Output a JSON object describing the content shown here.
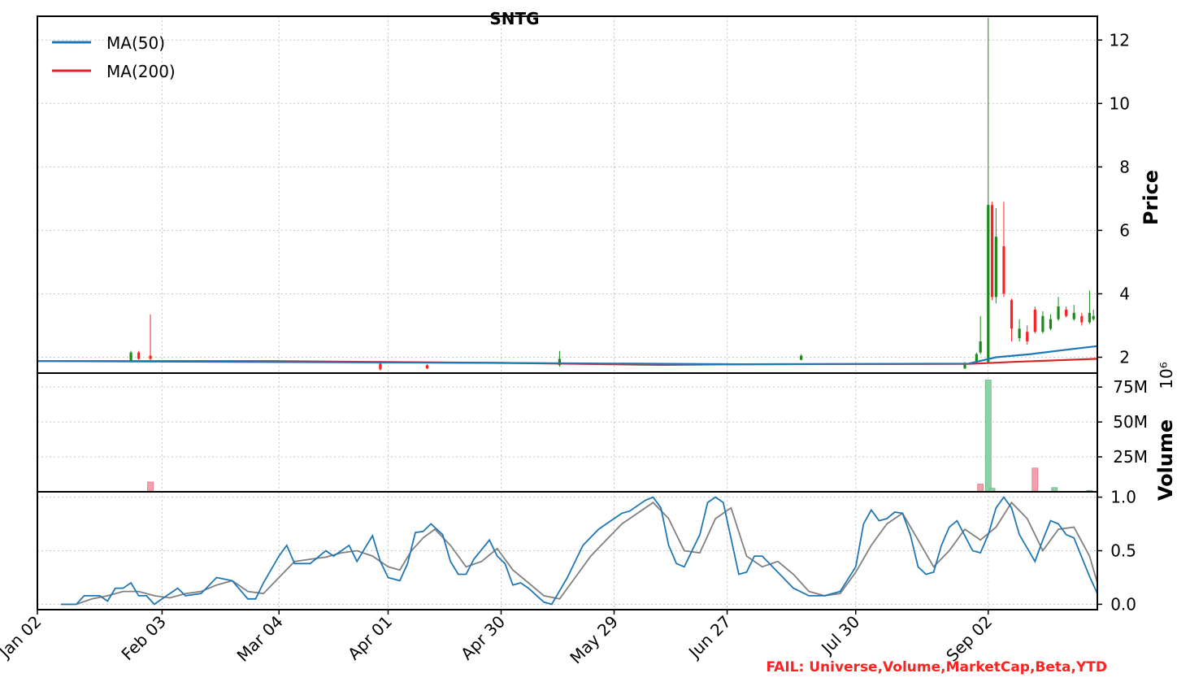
{
  "chart_data": {
    "type": "candlestick",
    "title": "SNTG",
    "status_text": "FAIL: Universe,Volume,MarketCap,Beta,YTD",
    "x_tick_labels": [
      "Jan 02",
      "Feb 03",
      "Mar 04",
      "Apr 01",
      "Apr 30",
      "May 29",
      "Jun 27",
      "Jul 30",
      "Sep 02"
    ],
    "x_tick_days": [
      0,
      32,
      62,
      90,
      119,
      148,
      177,
      210,
      244
    ],
    "x_range_days": [
      0,
      272
    ],
    "colors": {
      "up": "#1a8a1a",
      "down": "#ff2020",
      "ma50": "#1f77b4",
      "ma200": "#d62728",
      "vol_up": "#8fd0a8",
      "vol_down": "#f4a0ac",
      "osc_fast": "#1f77b4",
      "osc_slow": "#808080"
    },
    "price_panel": {
      "ylabel": "Price",
      "ylim": [
        1.5,
        12.75
      ],
      "yticks": [
        2,
        4,
        6,
        8,
        10,
        12
      ],
      "legend": [
        "MA(50)",
        "MA(200)"
      ],
      "legend_position": "top-left",
      "grid": true,
      "ma50": [
        [
          0,
          1.88
        ],
        [
          120,
          1.82
        ],
        [
          180,
          1.78
        ],
        [
          239,
          1.8
        ],
        [
          246,
          2.0
        ],
        [
          255,
          2.1
        ],
        [
          265,
          2.25
        ],
        [
          272,
          2.35
        ]
      ],
      "ma200": [
        [
          0,
          1.88
        ],
        [
          60,
          1.88
        ],
        [
          120,
          1.82
        ],
        [
          160,
          1.76
        ],
        [
          180,
          1.78
        ],
        [
          239,
          1.79
        ],
        [
          250,
          1.85
        ],
        [
          272,
          1.95
        ]
      ],
      "candles": [
        [
          24,
          1.9,
          2.15,
          1.88,
          2.2
        ],
        [
          26,
          2.15,
          1.95,
          1.92,
          2.2
        ],
        [
          29,
          2.05,
          1.95,
          1.85,
          3.35
        ],
        [
          88,
          1.8,
          1.62,
          1.58,
          1.82
        ],
        [
          100,
          1.75,
          1.65,
          1.62,
          1.78
        ],
        [
          134,
          1.75,
          1.95,
          1.7,
          2.2
        ],
        [
          196,
          1.92,
          2.05,
          1.9,
          2.1
        ],
        [
          238,
          1.65,
          1.8,
          1.62,
          1.85
        ],
        [
          241,
          1.85,
          2.1,
          1.8,
          2.15
        ],
        [
          242,
          2.15,
          2.5,
          2.1,
          3.3
        ],
        [
          244,
          1.85,
          6.8,
          1.8,
          12.7
        ],
        [
          245,
          6.8,
          3.9,
          3.8,
          6.9
        ],
        [
          246,
          3.9,
          5.8,
          3.7,
          6.7
        ],
        [
          248,
          5.5,
          4.0,
          3.9,
          6.9
        ],
        [
          250,
          3.8,
          2.9,
          2.5,
          3.85
        ],
        [
          252,
          2.6,
          2.9,
          2.5,
          3.2
        ],
        [
          254,
          2.8,
          2.5,
          2.4,
          3.0
        ],
        [
          256,
          3.5,
          2.8,
          2.75,
          3.6
        ],
        [
          258,
          2.8,
          3.3,
          2.75,
          3.45
        ],
        [
          260,
          2.9,
          3.2,
          2.85,
          3.35
        ],
        [
          262,
          3.2,
          3.6,
          3.15,
          3.9
        ],
        [
          264,
          3.5,
          3.3,
          3.25,
          3.6
        ],
        [
          266,
          3.2,
          3.4,
          3.15,
          3.65
        ],
        [
          268,
          3.3,
          3.1,
          3.0,
          3.4
        ],
        [
          270,
          3.1,
          3.4,
          3.05,
          4.1
        ],
        [
          271,
          3.2,
          3.3,
          3.15,
          3.5
        ]
      ]
    },
    "volume_panel": {
      "ylabel": "Volume",
      "ylim": [
        0,
        85000000
      ],
      "yticks": [
        25000000,
        50000000,
        75000000
      ],
      "ytick_labels": [
        "25M",
        "50M",
        "75M"
      ],
      "offset_text": "10⁶",
      "grid": true,
      "bars": [
        [
          29,
          7000000,
          "down"
        ],
        [
          242,
          5500000,
          "down"
        ],
        [
          244,
          80000000,
          "up"
        ],
        [
          245,
          2500000,
          "up"
        ],
        [
          256,
          17000000,
          "down"
        ],
        [
          261,
          3000000,
          "up"
        ],
        [
          270,
          1000000,
          "up"
        ]
      ]
    },
    "oscillator_panel": {
      "ylim": [
        -0.05,
        1.05
      ],
      "yticks": [
        0.0,
        0.5,
        1.0
      ],
      "ytick_labels": [
        "0.0",
        "0.5",
        "1.0"
      ],
      "grid": true,
      "fast": [
        [
          6,
          0.0
        ],
        [
          10,
          0.0
        ],
        [
          12,
          0.08
        ],
        [
          16,
          0.08
        ],
        [
          18,
          0.03
        ],
        [
          20,
          0.15
        ],
        [
          22,
          0.15
        ],
        [
          24,
          0.2
        ],
        [
          26,
          0.08
        ],
        [
          28,
          0.08
        ],
        [
          30,
          0.0
        ],
        [
          32,
          0.05
        ],
        [
          36,
          0.15
        ],
        [
          38,
          0.08
        ],
        [
          42,
          0.1
        ],
        [
          46,
          0.25
        ],
        [
          50,
          0.22
        ],
        [
          54,
          0.05
        ],
        [
          56,
          0.05
        ],
        [
          58,
          0.2
        ],
        [
          62,
          0.45
        ],
        [
          64,
          0.55
        ],
        [
          66,
          0.38
        ],
        [
          70,
          0.38
        ],
        [
          74,
          0.5
        ],
        [
          76,
          0.45
        ],
        [
          80,
          0.55
        ],
        [
          82,
          0.4
        ],
        [
          86,
          0.64
        ],
        [
          88,
          0.4
        ],
        [
          90,
          0.25
        ],
        [
          93,
          0.22
        ],
        [
          95,
          0.38
        ],
        [
          97,
          0.67
        ],
        [
          99,
          0.68
        ],
        [
          101,
          0.75
        ],
        [
          104,
          0.65
        ],
        [
          106,
          0.4
        ],
        [
          108,
          0.28
        ],
        [
          110,
          0.28
        ],
        [
          112,
          0.42
        ],
        [
          116,
          0.6
        ],
        [
          118,
          0.45
        ],
        [
          120,
          0.38
        ],
        [
          122,
          0.18
        ],
        [
          124,
          0.2
        ],
        [
          126,
          0.15
        ],
        [
          130,
          0.02
        ],
        [
          132,
          0.0
        ],
        [
          136,
          0.25
        ],
        [
          140,
          0.55
        ],
        [
          144,
          0.7
        ],
        [
          146,
          0.75
        ],
        [
          150,
          0.85
        ],
        [
          152,
          0.87
        ],
        [
          156,
          0.97
        ],
        [
          158,
          1.0
        ],
        [
          160,
          0.9
        ],
        [
          162,
          0.55
        ],
        [
          164,
          0.38
        ],
        [
          166,
          0.35
        ],
        [
          170,
          0.65
        ],
        [
          172,
          0.95
        ],
        [
          174,
          1.0
        ],
        [
          176,
          0.95
        ],
        [
          180,
          0.28
        ],
        [
          182,
          0.3
        ],
        [
          184,
          0.45
        ],
        [
          186,
          0.45
        ],
        [
          190,
          0.3
        ],
        [
          194,
          0.15
        ],
        [
          198,
          0.08
        ],
        [
          202,
          0.08
        ],
        [
          206,
          0.12
        ],
        [
          210,
          0.35
        ],
        [
          212,
          0.75
        ],
        [
          214,
          0.88
        ],
        [
          216,
          0.78
        ],
        [
          218,
          0.8
        ],
        [
          220,
          0.86
        ],
        [
          222,
          0.85
        ],
        [
          224,
          0.65
        ],
        [
          226,
          0.35
        ],
        [
          228,
          0.28
        ],
        [
          230,
          0.3
        ],
        [
          232,
          0.55
        ],
        [
          234,
          0.72
        ],
        [
          236,
          0.78
        ],
        [
          240,
          0.5
        ],
        [
          242,
          0.48
        ],
        [
          244,
          0.65
        ],
        [
          246,
          0.9
        ],
        [
          248,
          1.0
        ],
        [
          250,
          0.9
        ],
        [
          252,
          0.65
        ],
        [
          256,
          0.4
        ],
        [
          258,
          0.6
        ],
        [
          260,
          0.78
        ],
        [
          262,
          0.75
        ],
        [
          264,
          0.65
        ],
        [
          266,
          0.62
        ],
        [
          270,
          0.26
        ],
        [
          272,
          0.1
        ]
      ],
      "slow": [
        [
          6,
          0.0
        ],
        [
          10,
          0.0
        ],
        [
          14,
          0.05
        ],
        [
          18,
          0.08
        ],
        [
          22,
          0.12
        ],
        [
          26,
          0.12
        ],
        [
          30,
          0.08
        ],
        [
          34,
          0.06
        ],
        [
          38,
          0.1
        ],
        [
          42,
          0.12
        ],
        [
          46,
          0.18
        ],
        [
          50,
          0.22
        ],
        [
          54,
          0.12
        ],
        [
          58,
          0.1
        ],
        [
          62,
          0.25
        ],
        [
          66,
          0.4
        ],
        [
          70,
          0.42
        ],
        [
          74,
          0.44
        ],
        [
          78,
          0.48
        ],
        [
          82,
          0.5
        ],
        [
          86,
          0.45
        ],
        [
          90,
          0.35
        ],
        [
          93,
          0.32
        ],
        [
          96,
          0.5
        ],
        [
          99,
          0.62
        ],
        [
          102,
          0.7
        ],
        [
          106,
          0.55
        ],
        [
          110,
          0.35
        ],
        [
          114,
          0.4
        ],
        [
          118,
          0.52
        ],
        [
          122,
          0.32
        ],
        [
          126,
          0.2
        ],
        [
          130,
          0.08
        ],
        [
          134,
          0.05
        ],
        [
          138,
          0.25
        ],
        [
          142,
          0.45
        ],
        [
          146,
          0.6
        ],
        [
          150,
          0.75
        ],
        [
          154,
          0.85
        ],
        [
          158,
          0.95
        ],
        [
          162,
          0.8
        ],
        [
          166,
          0.5
        ],
        [
          170,
          0.48
        ],
        [
          174,
          0.8
        ],
        [
          178,
          0.9
        ],
        [
          182,
          0.45
        ],
        [
          186,
          0.35
        ],
        [
          190,
          0.4
        ],
        [
          194,
          0.28
        ],
        [
          198,
          0.12
        ],
        [
          202,
          0.08
        ],
        [
          206,
          0.1
        ],
        [
          210,
          0.3
        ],
        [
          214,
          0.55
        ],
        [
          218,
          0.75
        ],
        [
          222,
          0.85
        ],
        [
          226,
          0.6
        ],
        [
          230,
          0.35
        ],
        [
          234,
          0.5
        ],
        [
          238,
          0.7
        ],
        [
          242,
          0.6
        ],
        [
          246,
          0.72
        ],
        [
          250,
          0.95
        ],
        [
          254,
          0.8
        ],
        [
          258,
          0.5
        ],
        [
          262,
          0.7
        ],
        [
          266,
          0.72
        ],
        [
          270,
          0.45
        ],
        [
          272,
          0.2
        ]
      ]
    }
  }
}
